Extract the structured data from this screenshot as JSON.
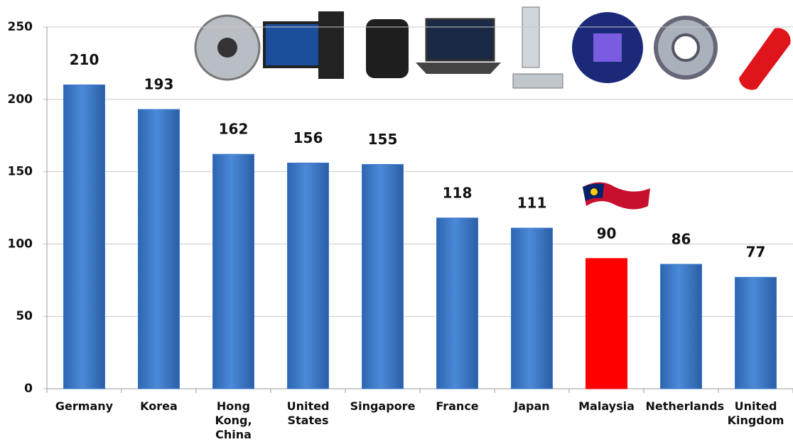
{
  "chart_data": {
    "type": "bar",
    "categories": [
      "Germany",
      "Korea",
      "Hong Kong, China",
      "United States",
      "Singapore",
      "France",
      "Japan",
      "Malaysia",
      "Netherlands",
      "United Kingdom"
    ],
    "values": [
      210,
      193,
      162,
      156,
      155,
      118,
      111,
      90,
      86,
      77
    ],
    "colors": [
      "#3a78c9",
      "#3a78c9",
      "#3a78c9",
      "#3a78c9",
      "#3a78c9",
      "#3a78c9",
      "#3a78c9",
      "#ff0000",
      "#3a78c9",
      "#3a78c9"
    ],
    "ylim": [
      0,
      250
    ],
    "yticks": [
      0,
      50,
      100,
      150,
      200,
      250
    ],
    "grid": true
  }
}
